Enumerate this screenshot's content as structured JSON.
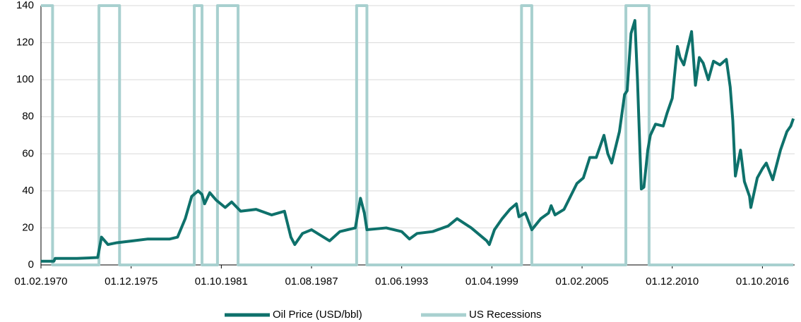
{
  "chart_data": {
    "type": "line",
    "xlim": [
      "01.02.1970",
      "01.11.2018"
    ],
    "xticks": [
      "01.02.1970",
      "01.12.1975",
      "01.10.1981",
      "01.08.1987",
      "01.06.1993",
      "01.04.1999",
      "01.02.2005",
      "01.12.2010",
      "01.10.2016"
    ],
    "ylim": [
      0,
      140
    ],
    "yticks": [
      0,
      20,
      40,
      60,
      80,
      100,
      120,
      140
    ],
    "grid": true,
    "legend": "bottom",
    "series": [
      {
        "name": "Oil Price (USD/bbl)",
        "color": "#0e716b",
        "x": [
          "01.02.1970",
          "01.12.1970",
          "01.01.1971",
          "01.06.1972",
          "01.10.1973",
          "01.01.1974",
          "01.06.1974",
          "01.01.1975",
          "01.01.1976",
          "01.01.1977",
          "01.06.1978",
          "01.12.1978",
          "01.06.1979",
          "01.11.1979",
          "01.04.1980",
          "01.07.1980",
          "01.09.1980",
          "01.01.1981",
          "01.06.1981",
          "01.01.1982",
          "01.06.1982",
          "01.01.1983",
          "01.01.1984",
          "01.01.1985",
          "01.11.1985",
          "01.04.1986",
          "01.07.1986",
          "01.01.1987",
          "01.08.1987",
          "01.03.1988",
          "01.10.1988",
          "01.06.1989",
          "01.06.1990",
          "01.10.1990",
          "01.01.1991",
          "01.03.1991",
          "01.06.1992",
          "01.06.1993",
          "01.12.1993",
          "01.06.1994",
          "01.06.1995",
          "01.06.1996",
          "01.01.1997",
          "01.12.1997",
          "01.12.1998",
          "01.02.1999",
          "01.06.1999",
          "01.12.1999",
          "01.06.2000",
          "01.11.2000",
          "01.01.2001",
          "01.06.2001",
          "01.11.2001",
          "01.06.2002",
          "01.12.2002",
          "01.02.2003",
          "01.05.2003",
          "01.12.2003",
          "01.05.2004",
          "01.10.2004",
          "01.03.2005",
          "01.08.2005",
          "01.01.2006",
          "01.07.2006",
          "01.10.2006",
          "01.01.2007",
          "01.07.2007",
          "01.11.2007",
          "01.01.2008",
          "01.04.2008",
          "01.07.2008",
          "01.09.2008",
          "01.11.2008",
          "01.12.2008",
          "01.02.2009",
          "01.05.2009",
          "01.07.2009",
          "01.11.2009",
          "01.05.2010",
          "01.08.2010",
          "01.12.2010",
          "01.02.2011",
          "01.04.2011",
          "01.06.2011",
          "01.09.2011",
          "01.03.2012",
          "01.06.2012",
          "01.09.2012",
          "01.12.2012",
          "01.04.2013",
          "01.08.2013",
          "01.01.2014",
          "01.06.2014",
          "01.09.2014",
          "01.11.2014",
          "01.01.2015",
          "01.05.2015",
          "01.08.2015",
          "01.12.2015",
          "01.01.2016",
          "01.06.2016",
          "01.10.2016",
          "01.01.2017",
          "01.06.2017",
          "01.12.2017",
          "01.05.2018",
          "01.08.2018",
          "01.10.2018"
        ],
        "values": [
          2,
          2,
          3.5,
          3.5,
          4,
          15,
          11,
          12,
          13,
          14,
          14,
          15,
          25,
          37,
          40,
          38,
          33,
          39,
          35,
          31,
          34,
          29,
          30,
          27,
          29,
          15,
          11,
          17,
          19,
          16,
          13,
          18,
          20,
          36,
          28,
          19,
          20,
          18,
          14,
          17,
          18,
          21,
          25,
          20,
          13,
          11,
          19,
          25,
          30,
          33,
          26,
          28,
          19,
          25,
          28,
          32,
          27,
          30,
          37,
          44,
          47,
          58,
          58,
          70,
          60,
          55,
          72,
          92,
          94,
          125,
          132,
          100,
          60,
          41,
          42,
          62,
          70,
          76,
          75,
          82,
          90,
          104,
          118,
          112,
          108,
          126,
          97,
          112,
          109,
          100,
          110,
          108,
          111,
          96,
          78,
          48,
          62,
          45,
          37,
          31,
          47,
          52,
          55,
          46,
          62,
          72,
          75,
          79
        ]
      },
      {
        "name": "US Recessions",
        "color": "#a8d0cf",
        "x": [
          "01.02.1970",
          "01.11.1970",
          "01.11.1970",
          "01.11.1973",
          "01.11.1973",
          "01.03.1975",
          "01.03.1975",
          "01.01.1980",
          "01.01.1980",
          "01.07.1980",
          "01.07.1980",
          "01.07.1981",
          "01.07.1981",
          "01.11.1982",
          "01.11.1982",
          "01.07.1990",
          "01.07.1990",
          "01.03.1991",
          "01.03.1991",
          "01.03.2001",
          "01.03.2001",
          "01.11.2001",
          "01.11.2001",
          "01.12.2007",
          "01.12.2007",
          "01.06.2009",
          "01.06.2009",
          "01.10.2018"
        ],
        "values": [
          140,
          140,
          0,
          0,
          140,
          140,
          0,
          0,
          140,
          140,
          0,
          0,
          140,
          140,
          0,
          0,
          140,
          140,
          0,
          0,
          140,
          140,
          0,
          0,
          140,
          140,
          0,
          0
        ]
      }
    ]
  }
}
